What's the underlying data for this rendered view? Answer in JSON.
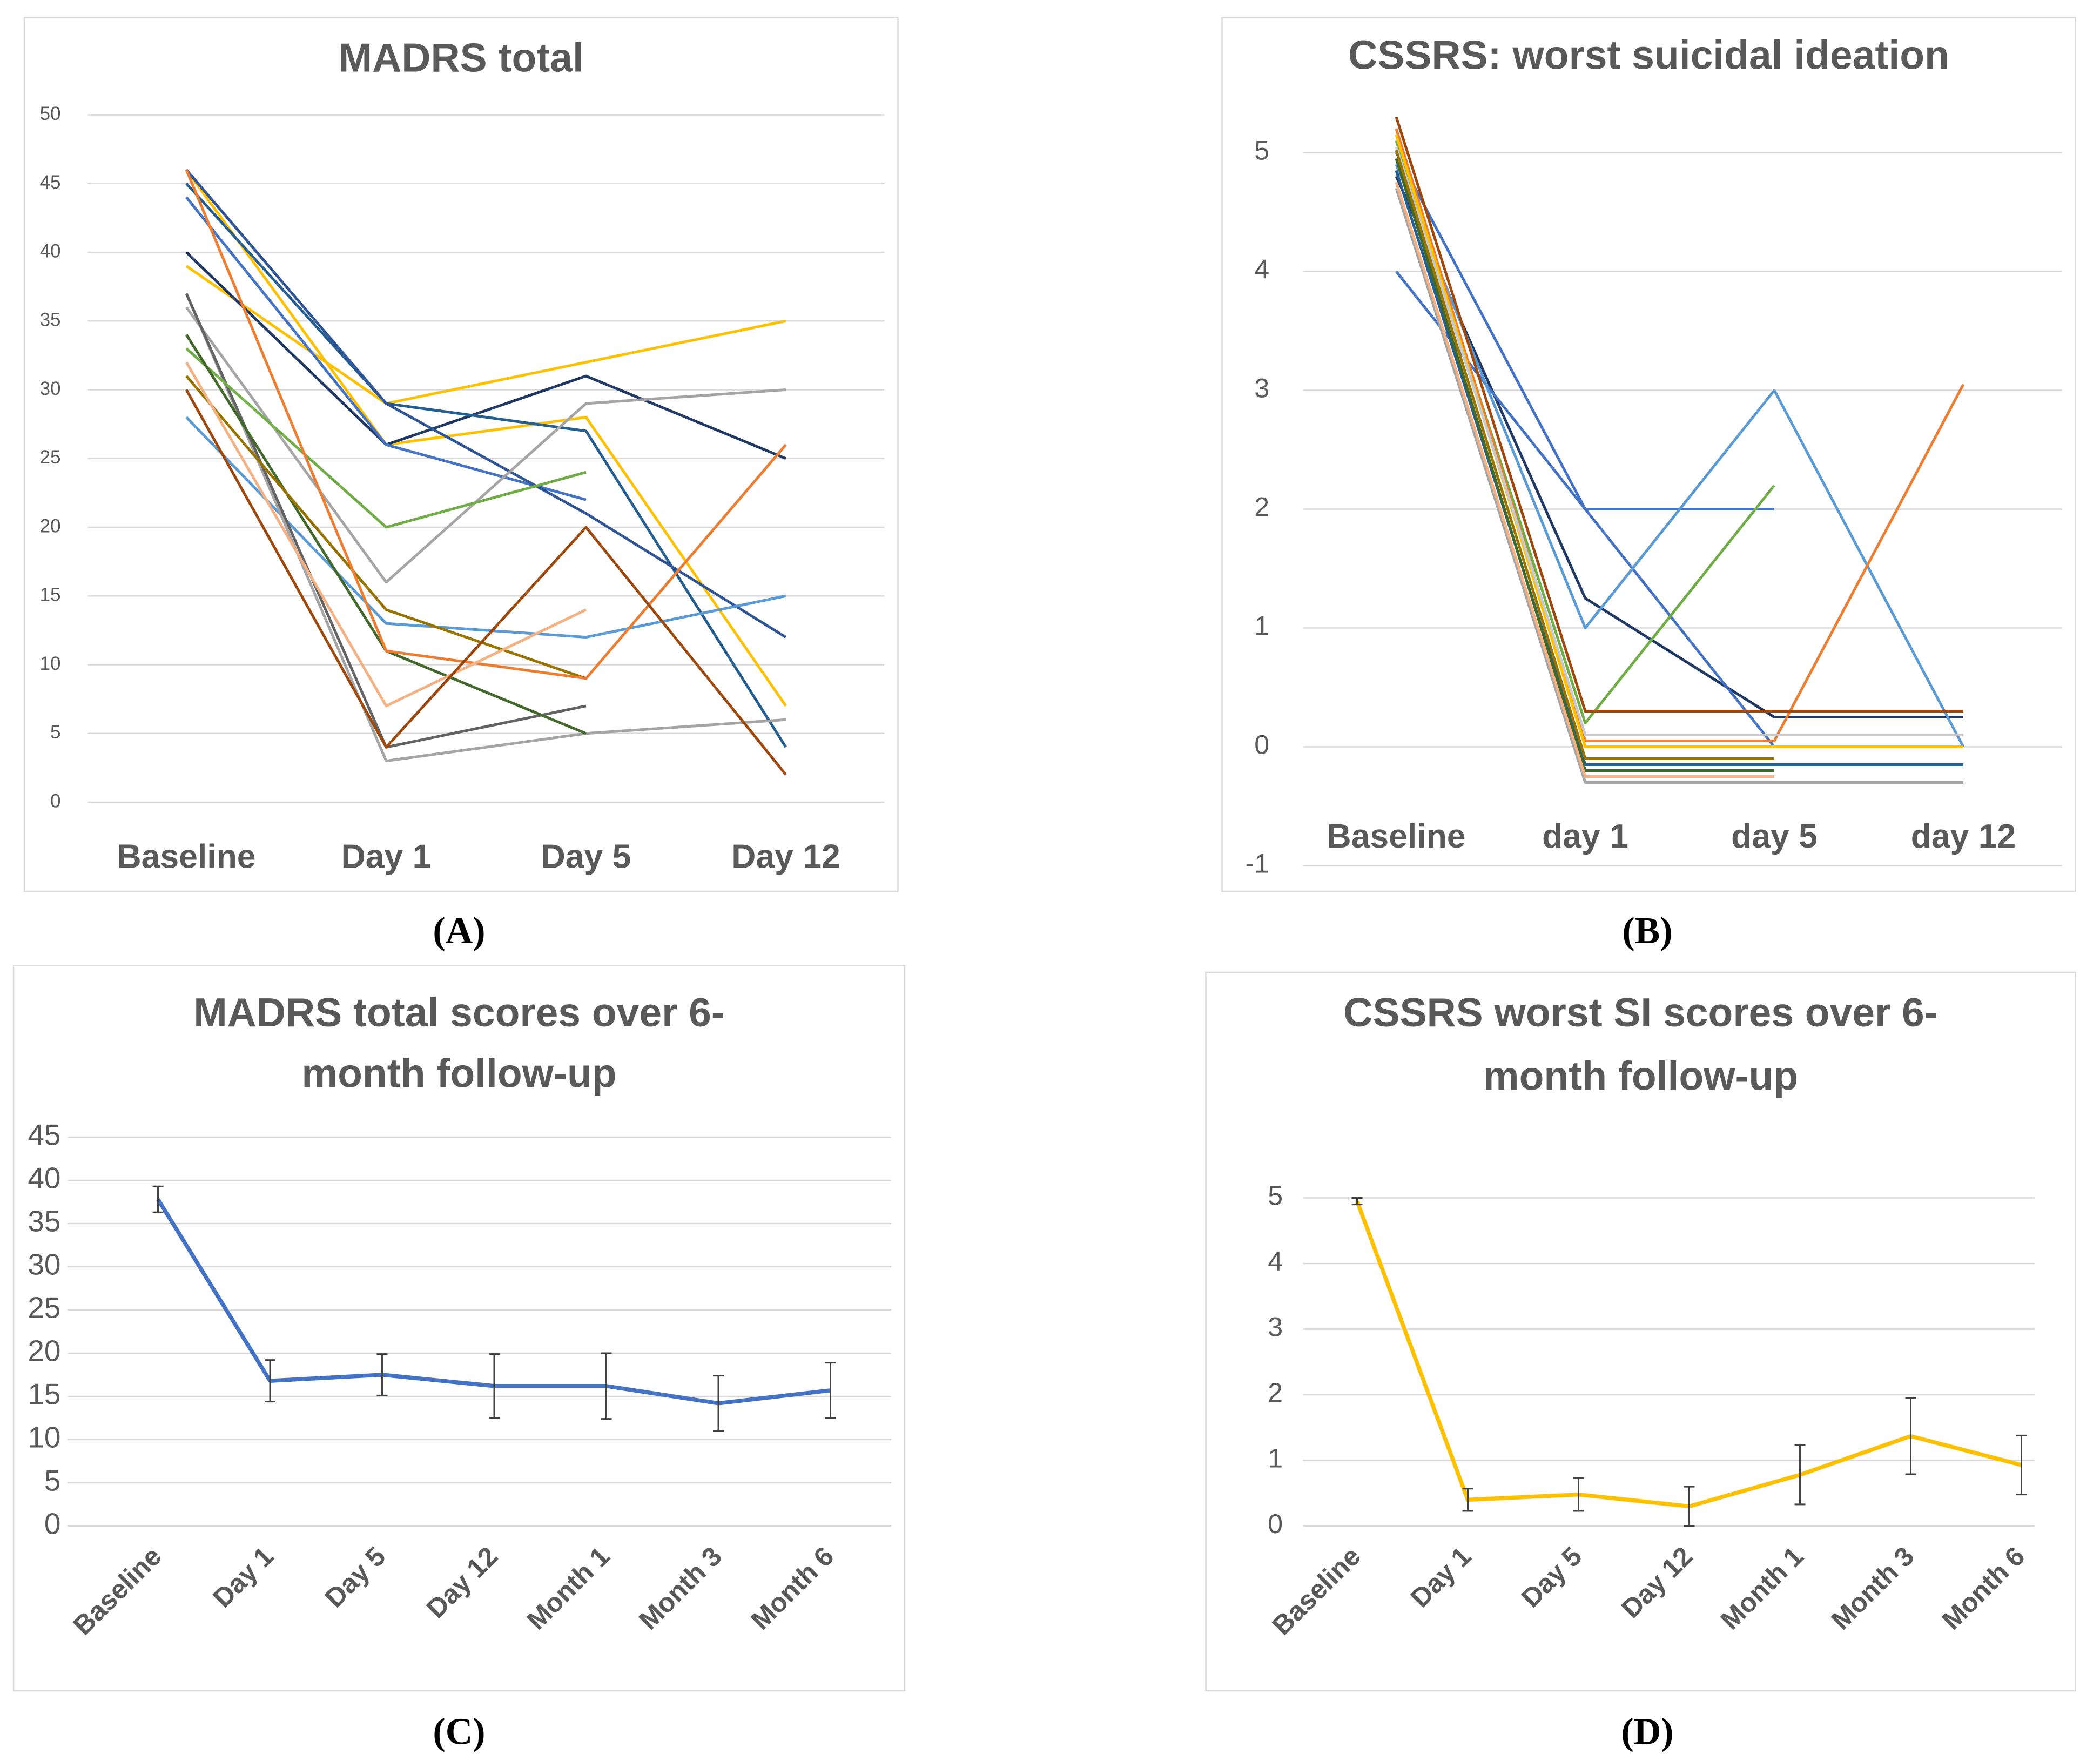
{
  "chart_data": [
    {
      "type": "line",
      "panel_label": "(A)",
      "title": [
        "MADRS total"
      ],
      "categories": [
        "Baseline",
        "Day 1",
        "Day 5",
        "Day 12"
      ],
      "ylim": [
        0,
        50
      ],
      "yticks": [
        0,
        5,
        10,
        15,
        20,
        25,
        30,
        35,
        40,
        45,
        50
      ],
      "grid": true,
      "series": [
        {
          "color": "#FFC000",
          "values": [
            39,
            29,
            32,
            35
          ]
        },
        {
          "color": "#FFC000",
          "values": [
            46,
            26,
            28,
            7
          ]
        },
        {
          "color": "#203864",
          "values": [
            40,
            26,
            31,
            25
          ]
        },
        {
          "color": "#255E91",
          "values": [
            45,
            29,
            27,
            4
          ]
        },
        {
          "color": "#4472C4",
          "values": [
            44,
            26,
            22,
            null
          ]
        },
        {
          "color": "#2F5597",
          "values": [
            46,
            29,
            21,
            12
          ]
        },
        {
          "color": "#5B9BD5",
          "values": [
            28,
            13,
            12,
            15
          ]
        },
        {
          "color": "#A5A5A5",
          "values": [
            36,
            16,
            29,
            30
          ]
        },
        {
          "color": "#A5A5A5",
          "values": [
            37,
            3,
            5,
            6
          ]
        },
        {
          "color": "#636363",
          "values": [
            37,
            4,
            7,
            null
          ]
        },
        {
          "color": "#70AD47",
          "values": [
            33,
            20,
            24,
            null
          ]
        },
        {
          "color": "#43682B",
          "values": [
            34,
            11,
            5,
            null
          ]
        },
        {
          "color": "#997300",
          "values": [
            31,
            14,
            9,
            null
          ]
        },
        {
          "color": "#ED7D31",
          "values": [
            46,
            11,
            9,
            26
          ]
        },
        {
          "color": "#F4B183",
          "values": [
            32,
            7,
            14,
            null
          ]
        },
        {
          "color": "#9E480E",
          "values": [
            30,
            4,
            20,
            2
          ]
        }
      ]
    },
    {
      "type": "line",
      "panel_label": "(B)",
      "title": [
        "CSSRS: worst suicidal ideation"
      ],
      "categories": [
        "Baseline",
        "day 1",
        "day 5",
        "day 12"
      ],
      "ylim": [
        -1,
        5
      ],
      "yticks": [
        -1,
        0,
        1,
        2,
        3,
        4,
        5
      ],
      "grid": true,
      "series": [
        {
          "color": "#203864",
          "values": [
            4.8,
            1.25,
            0.25,
            0.25
          ]
        },
        {
          "color": "#4472C4",
          "values": [
            4,
            2,
            2,
            null
          ]
        },
        {
          "color": "#4472C4",
          "values": [
            5.0,
            2,
            0,
            null
          ]
        },
        {
          "color": "#5B9BD5",
          "values": [
            4.9,
            1,
            3,
            0
          ]
        },
        {
          "color": "#70AD47",
          "values": [
            5.1,
            0.2,
            2.2,
            null
          ]
        },
        {
          "color": "#ED7D31",
          "values": [
            5.2,
            0.05,
            0.05,
            3.05
          ]
        },
        {
          "color": "#9E480E",
          "values": [
            5.3,
            0.3,
            0.3,
            0.3
          ]
        },
        {
          "color": "#A5A5A5",
          "values": [
            4.7,
            -0.3,
            -0.3,
            -0.3
          ]
        },
        {
          "color": "#FFC000",
          "values": [
            5.15,
            0,
            0,
            0
          ]
        },
        {
          "color": "#C9C9C9",
          "values": [
            5.05,
            0.1,
            0.1,
            0.1
          ]
        },
        {
          "color": "#255E91",
          "values": [
            4.85,
            -0.15,
            -0.15,
            -0.15
          ]
        },
        {
          "color": "#43682B",
          "values": [
            4.95,
            -0.2,
            -0.2,
            null
          ]
        },
        {
          "color": "#997300",
          "values": [
            5.02,
            -0.1,
            -0.1,
            null
          ]
        },
        {
          "color": "#F4B183",
          "values": [
            4.75,
            -0.25,
            -0.25,
            null
          ]
        }
      ]
    },
    {
      "type": "line",
      "panel_label": "(C)",
      "title": [
        "MADRS total scores over 6-",
        "month follow-up"
      ],
      "categories": [
        "Baseline",
        "Day 1",
        "Day 5",
        "Day 12",
        "Month 1",
        "Month 3",
        "Month 6"
      ],
      "ylim": [
        0,
        45
      ],
      "yticks": [
        0,
        5,
        10,
        15,
        20,
        25,
        30,
        35,
        40,
        45
      ],
      "grid": true,
      "series": [
        {
          "color": "#4472C4",
          "values": [
            37.8,
            16.8,
            17.5,
            16.2,
            16.2,
            14.2,
            15.7
          ],
          "errors": [
            1.5,
            2.4,
            2.4,
            3.7,
            3.8,
            3.2,
            3.2
          ]
        }
      ]
    },
    {
      "type": "line",
      "panel_label": "(D)",
      "title": [
        "CSSRS worst SI scores over 6-",
        "month follow-up"
      ],
      "categories": [
        "Baseline",
        "Day 1",
        "Day 5",
        "Day 12",
        "Month 1",
        "Month 3",
        "Month 6"
      ],
      "ylim": [
        0,
        5
      ],
      "yticks": [
        0,
        1,
        2,
        3,
        4,
        5
      ],
      "grid": true,
      "series": [
        {
          "color": "#FFC000",
          "values": [
            4.95,
            0.4,
            0.48,
            0.3,
            0.78,
            1.37,
            0.93
          ],
          "errors": [
            0.05,
            0.17,
            0.25,
            0.3,
            0.45,
            0.58,
            0.45
          ]
        }
      ]
    }
  ]
}
